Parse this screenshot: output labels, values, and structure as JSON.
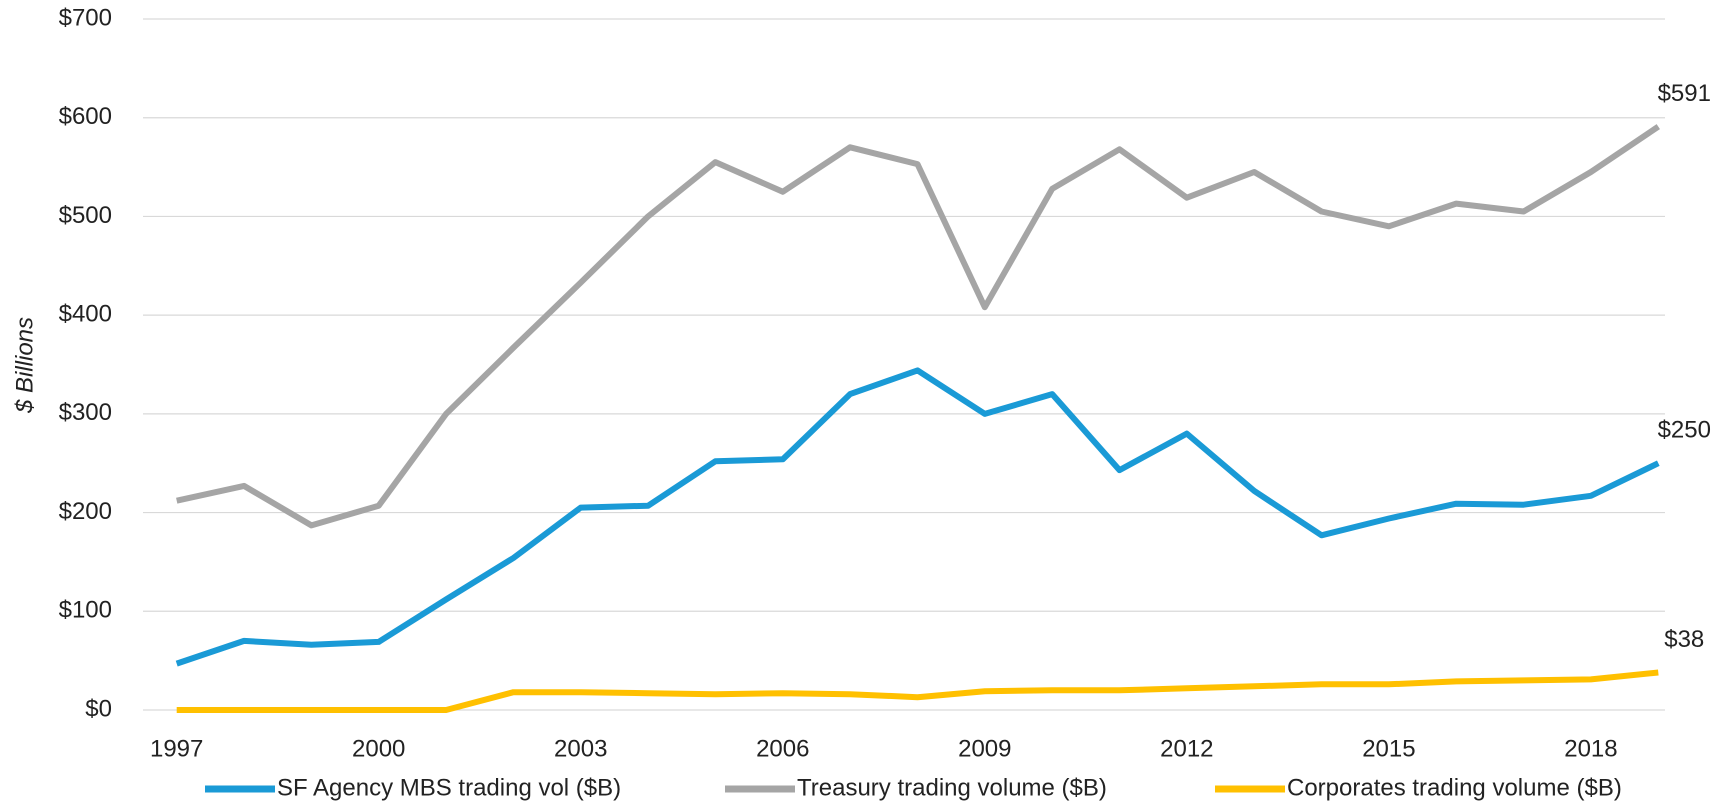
{
  "chart_data": {
    "type": "line",
    "y_label": "$ Billions",
    "x": [
      1997,
      1998,
      1999,
      2000,
      2001,
      2002,
      2003,
      2004,
      2005,
      2006,
      2007,
      2008,
      2009,
      2010,
      2011,
      2012,
      2013,
      2014,
      2015,
      2016,
      2017,
      2018,
      2019
    ],
    "series": [
      {
        "name": "SF Agency MBS trading vol ($B)",
        "color": "#1a9ad6",
        "values": [
          47,
          70,
          66,
          69,
          112,
          154,
          205,
          207,
          252,
          254,
          320,
          344,
          300,
          320,
          243,
          280,
          222,
          177,
          194,
          209,
          208,
          217,
          250
        ],
        "value_labels": [
          null,
          null,
          null,
          null,
          null,
          null,
          null,
          null,
          null,
          null,
          null,
          null,
          null,
          null,
          null,
          null,
          null,
          null,
          null,
          null,
          null,
          null,
          "$250"
        ]
      },
      {
        "name": "Treasury trading volume ($B)",
        "color": "#a5a5a5",
        "values": [
          212,
          227,
          187,
          207,
          300,
          367,
          433,
          500,
          555,
          525,
          570,
          553,
          408,
          528,
          568,
          519,
          545,
          505,
          490,
          513,
          505,
          545,
          591
        ],
        "value_labels": [
          null,
          null,
          null,
          null,
          null,
          null,
          null,
          null,
          null,
          null,
          null,
          null,
          null,
          null,
          null,
          null,
          null,
          null,
          null,
          null,
          null,
          null,
          "$591"
        ]
      },
      {
        "name": "Corporates trading volume ($B)",
        "color": "#ffc000",
        "values": [
          0,
          0,
          0,
          0,
          0,
          18,
          18,
          17,
          16,
          17,
          16,
          13,
          19,
          20,
          20,
          22,
          24,
          26,
          26,
          29,
          30,
          31,
          38
        ],
        "value_labels": [
          null,
          null,
          null,
          null,
          null,
          null,
          null,
          null,
          null,
          null,
          null,
          null,
          null,
          null,
          null,
          null,
          null,
          null,
          null,
          null,
          null,
          null,
          "$38"
        ]
      }
    ],
    "xlim": [
      1996.5,
      2019.1
    ],
    "xticks": [
      1997,
      2000,
      2003,
      2006,
      2009,
      2012,
      2015,
      2018
    ],
    "ylim": [
      0,
      700
    ],
    "yticks": [
      {
        "value": 0,
        "label": "$0"
      },
      {
        "value": 100,
        "label": "$100"
      },
      {
        "value": 200,
        "label": "$200"
      },
      {
        "value": 300,
        "label": "$300"
      },
      {
        "value": 400,
        "label": "$400"
      },
      {
        "value": 500,
        "label": "$500"
      },
      {
        "value": 600,
        "label": "$600"
      },
      {
        "value": 700,
        "label": "$700"
      }
    ],
    "grid": true,
    "legend": "bottom"
  }
}
